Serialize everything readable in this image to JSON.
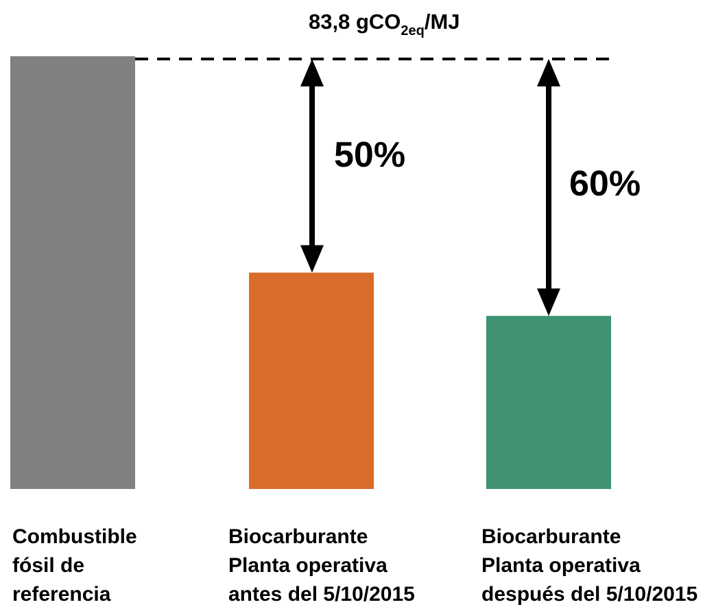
{
  "chart_data": {
    "type": "bar",
    "categories": [
      [
        "Combustible",
        "fósil de",
        "referencia"
      ],
      [
        "Biocarburante",
        "Planta operativa",
        "antes del 5/10/2015"
      ],
      [
        "Biocarburante",
        "Planta operativa",
        "después del 5/10/2015"
      ]
    ],
    "values": [
      83.8,
      41.9,
      33.52
    ],
    "colors": [
      "#808080",
      "#DA6C2B",
      "#3F9373"
    ],
    "reference": {
      "value": 83.8,
      "label_main": "83,8 gCO",
      "label_sub": "2eq",
      "label_unit": "/MJ"
    },
    "reductions": [
      {
        "from": 83.8,
        "to": 41.9,
        "label": "50%"
      },
      {
        "from": 83.8,
        "to": 33.52,
        "label": "60%"
      }
    ],
    "ylim": [
      0,
      83.8
    ],
    "grid": false,
    "legend": "none"
  }
}
